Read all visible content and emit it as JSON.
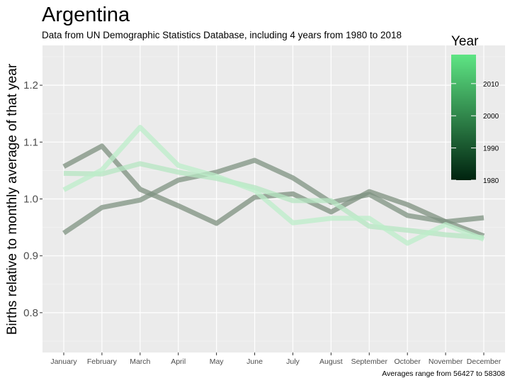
{
  "chart_data": {
    "type": "line",
    "title": "Argentina",
    "subtitle": "Data from UN Demographic Statistics Database, including 4 years from 1980 to 2018",
    "ylabel": "Births relative to monthly average of that year",
    "xlabel": "",
    "caption": "Averages range from 56427 to 58308",
    "categories": [
      "January",
      "February",
      "March",
      "April",
      "May",
      "June",
      "July",
      "August",
      "September",
      "October",
      "November",
      "December"
    ],
    "ylim": [
      0.73,
      1.27
    ],
    "yticks": [
      0.8,
      0.9,
      1.0,
      1.1,
      1.2
    ],
    "ytick_labels": [
      "0.8",
      "0.9",
      "1.0",
      "1.1",
      "1.2"
    ],
    "grid": true,
    "legend": {
      "title": "Year",
      "placement": "right",
      "range": [
        1980,
        2019
      ],
      "ticks": [
        1980,
        1990,
        2000,
        2010
      ],
      "color_low": "#00230f",
      "color_high": "#5ee584"
    },
    "series": [
      {
        "year": 1980,
        "color": "#7d907f",
        "values": [
          1.057,
          1.093,
          1.017,
          0.988,
          0.957,
          1.003,
          1.009,
          0.977,
          1.013,
          0.99,
          0.96,
          0.935
        ]
      },
      {
        "year": 1984,
        "color": "#7f9382",
        "values": [
          0.94,
          0.985,
          0.998,
          1.033,
          1.047,
          1.068,
          1.037,
          0.994,
          1.008,
          0.971,
          0.96,
          0.967
        ]
      },
      {
        "year": 2012,
        "color": "#b6e6c2",
        "values": [
          1.045,
          1.044,
          1.062,
          1.047,
          1.036,
          1.02,
          0.997,
          0.997,
          0.952,
          0.945,
          0.937,
          0.932
        ]
      },
      {
        "year": 2018,
        "color": "#bcedca",
        "values": [
          1.016,
          1.051,
          1.126,
          1.059,
          1.04,
          1.015,
          0.958,
          0.966,
          0.966,
          0.922,
          0.955,
          0.929
        ]
      }
    ]
  }
}
